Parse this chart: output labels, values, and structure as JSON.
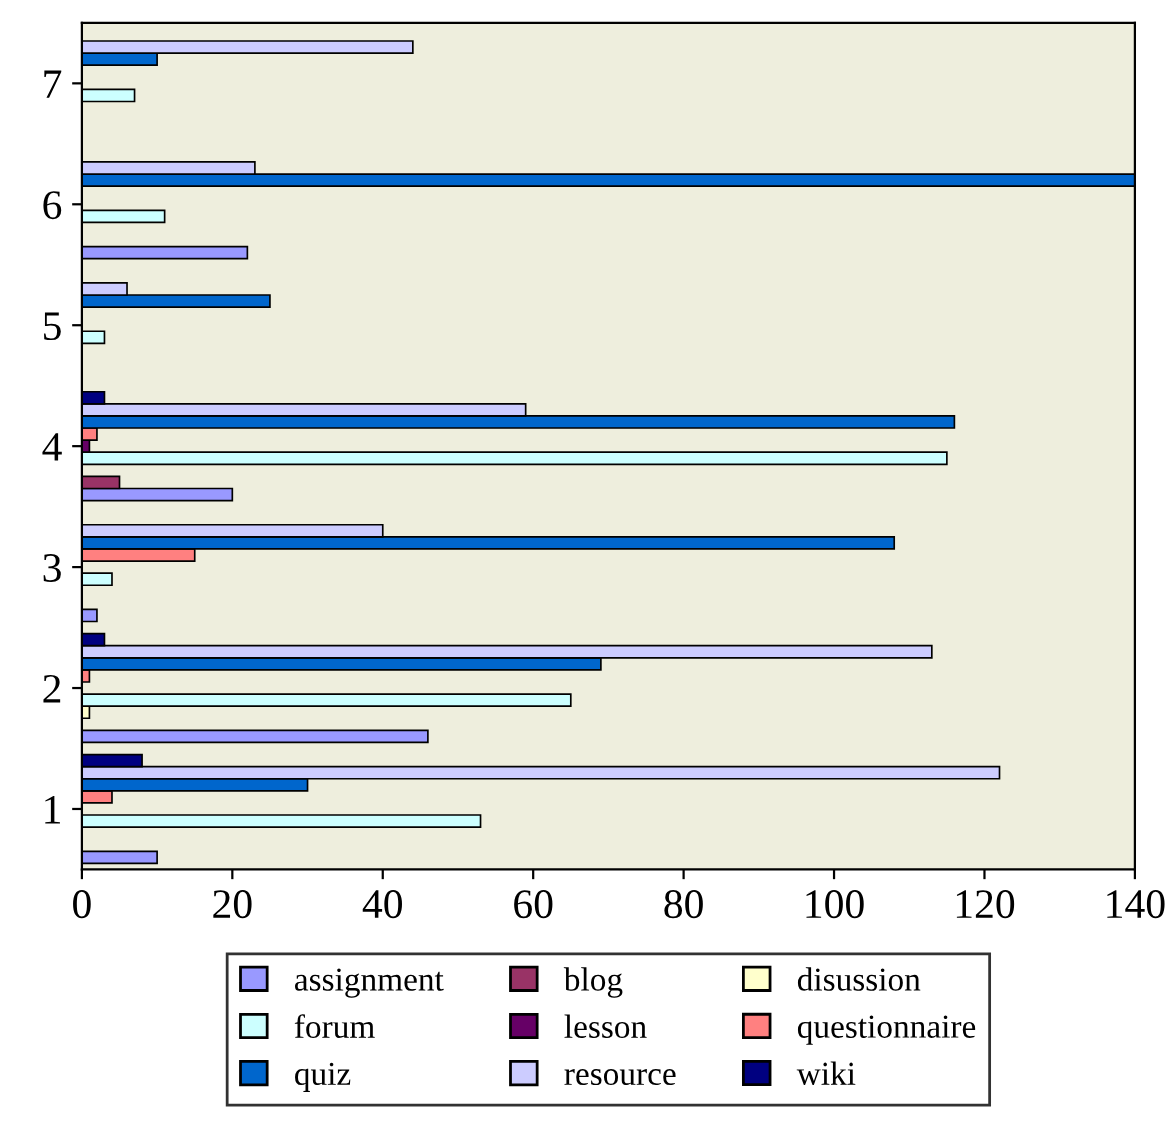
{
  "chart_data": {
    "type": "bar",
    "orientation": "horizontal",
    "categories": [
      "7",
      "6",
      "5",
      "4",
      "3",
      "2",
      "1"
    ],
    "series": [
      {
        "name": "assignment",
        "color": "#9999ff",
        "values": [
          null,
          22,
          null,
          20,
          2,
          46,
          10
        ]
      },
      {
        "name": "blog",
        "color": "#993366",
        "values": [
          null,
          null,
          null,
          5,
          null,
          null,
          null
        ]
      },
      {
        "name": "disussion",
        "color": "#ffffcc",
        "values": [
          null,
          null,
          null,
          null,
          null,
          1,
          null
        ]
      },
      {
        "name": "forum",
        "color": "#ccffff",
        "values": [
          7,
          11,
          3,
          115,
          4,
          65,
          53
        ]
      },
      {
        "name": "lesson",
        "color": "#660066",
        "values": [
          null,
          null,
          null,
          1,
          null,
          null,
          null
        ]
      },
      {
        "name": "questionnaire",
        "color": "#ff8080",
        "values": [
          null,
          null,
          null,
          2,
          15,
          1,
          4
        ]
      },
      {
        "name": "quiz",
        "color": "#0066cc",
        "values": [
          10,
          140,
          25,
          116,
          108,
          69,
          30
        ]
      },
      {
        "name": "resource",
        "color": "#ccccff",
        "values": [
          44,
          23,
          6,
          59,
          40,
          113,
          122
        ]
      },
      {
        "name": "wiki",
        "color": "#000080",
        "values": [
          null,
          null,
          null,
          3,
          null,
          3,
          8
        ]
      }
    ],
    "xlim": [
      0,
      140
    ],
    "xticks": [
      0,
      20,
      40,
      60,
      80,
      100,
      120,
      140
    ],
    "legend": "bottom",
    "grid": false
  }
}
